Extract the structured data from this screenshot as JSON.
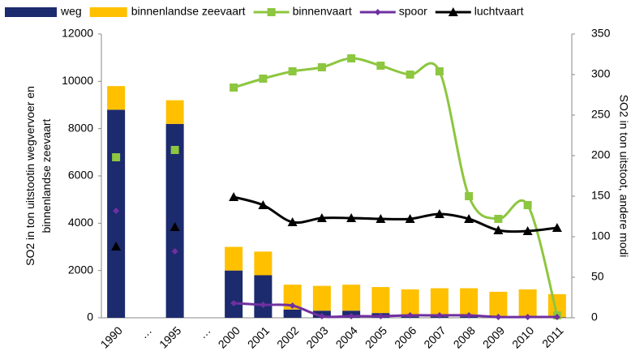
{
  "chart_data": {
    "type": "combo",
    "categories": [
      "1990",
      "…",
      "1995",
      "…",
      "2000",
      "2001",
      "2002",
      "2003",
      "2004",
      "2005",
      "2006",
      "2007",
      "2008",
      "2009",
      "2010",
      "2011"
    ],
    "ylabel": "SO2 in ton uitstootin wegvervoer en binnenlandse zeevaart",
    "y2label": "SO2 in ton uitstoot, andere modi",
    "ylim": [
      0,
      12000
    ],
    "yticks": [
      0,
      2000,
      4000,
      6000,
      8000,
      10000,
      12000
    ],
    "y2lim": [
      0,
      350
    ],
    "y2ticks": [
      0,
      50,
      100,
      150,
      200,
      250,
      300,
      350
    ],
    "series": [
      {
        "name": "weg",
        "type": "bar",
        "color": "#1c2a6e",
        "values": [
          8800,
          null,
          8200,
          null,
          2000,
          1800,
          350,
          300,
          300,
          200,
          50,
          50,
          50,
          30,
          30,
          20
        ]
      },
      {
        "name": "binnenlandse zeevaart",
        "type": "bar",
        "color": "#ffc000",
        "values": [
          1000,
          null,
          1000,
          null,
          1000,
          1000,
          1050,
          1050,
          1100,
          1100,
          1150,
          1200,
          1200,
          1070,
          1170,
          980
        ]
      },
      {
        "name": "binnenvaart",
        "type": "line",
        "axis": "y2",
        "marker": "square",
        "color": "#8dc63f",
        "values": [
          198,
          null,
          207,
          null,
          284,
          295,
          304,
          309,
          320,
          311,
          300,
          304,
          150,
          122,
          139,
          3
        ]
      },
      {
        "name": "spoor",
        "type": "line",
        "axis": "y2",
        "marker": "diamond",
        "color": "#7030a0",
        "values": [
          132,
          null,
          82,
          null,
          18,
          16,
          15,
          2,
          2,
          2,
          3,
          3,
          3,
          1,
          1,
          1
        ]
      },
      {
        "name": "luchtvaart",
        "type": "line",
        "axis": "y2",
        "marker": "triangle",
        "color": "#000000",
        "values": [
          88,
          null,
          112,
          null,
          149,
          139,
          118,
          123,
          123,
          122,
          122,
          128,
          122,
          108,
          107,
          111
        ]
      }
    ]
  }
}
